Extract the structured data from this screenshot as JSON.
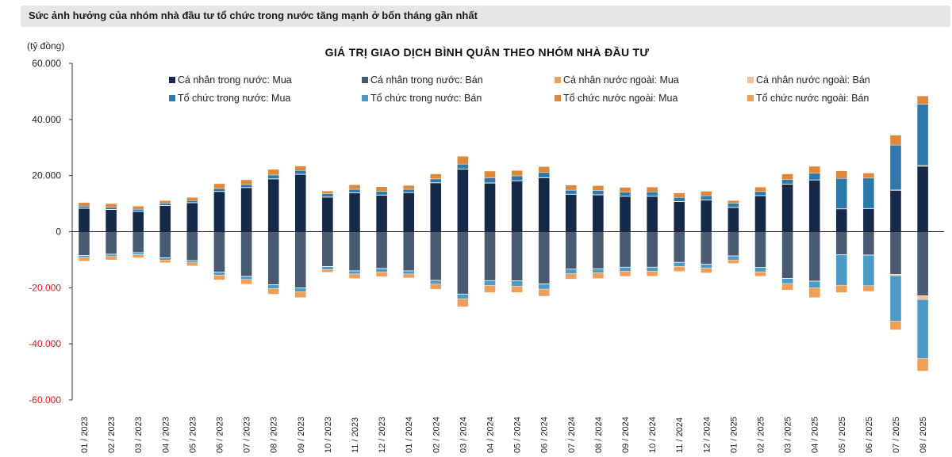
{
  "banner": {
    "title": "Sức ảnh hưởng của nhóm nhà đầu tư tổ chức trong nước tăng mạnh ở bốn tháng gần nhất"
  },
  "chart_data": {
    "type": "bar",
    "stacked": true,
    "title": "GIÁ TRỊ GIAO DỊCH BÌNH QUÂN THEO NHÓM NHÀ ĐẦU TƯ",
    "ylabel": "(tỷ đồng)",
    "xlabel": "",
    "ylim": [
      -60000,
      60000
    ],
    "yticks": [
      60000,
      40000,
      20000,
      0,
      -20000,
      -40000,
      -60000
    ],
    "ytick_labels": [
      "60.000",
      "40.000",
      "20.000",
      "0",
      "-20.000",
      "-40.000",
      "-60.000"
    ],
    "legend_position": "top-center",
    "categories": [
      "01 / 2023",
      "02 / 2023",
      "03 / 2023",
      "04 / 2023",
      "05 / 2023",
      "06 / 2023",
      "07 / 2023",
      "08 / 2023",
      "09 / 2023",
      "10 / 2023",
      "11 / 2023",
      "12 / 2023",
      "01 / 2024",
      "02 / 2024",
      "03 / 2024",
      "04 / 2024",
      "05 / 2024",
      "06 / 2024",
      "07 / 2024",
      "08 / 2024",
      "09 / 2024",
      "10 / 2024",
      "11 / 2024",
      "12 / 2024",
      "01 / 2025",
      "02 / 2025",
      "03 / 2025",
      "04 / 2025",
      "05 / 2025",
      "06 / 2025",
      "07 / 2025",
      "08 / 2025"
    ],
    "series": [
      {
        "name": "Cá nhân trong nước: Mua",
        "color": "#17294a",
        "values": [
          8300,
          7900,
          7200,
          9300,
          10300,
          14300,
          15700,
          18800,
          20400,
          12300,
          13800,
          13000,
          13900,
          17400,
          22300,
          17300,
          18100,
          19200,
          13300,
          13100,
          12600,
          12600,
          10700,
          11300,
          8600,
          12800,
          16900,
          18400,
          8100,
          8200,
          14700,
          23300
        ]
      },
      {
        "name": "Cá nhân trong nước: Bán",
        "color": "#4a5a70",
        "values": [
          -8400,
          -8000,
          -7400,
          -9300,
          -10300,
          -14400,
          -15900,
          -18900,
          -20000,
          -12400,
          -13900,
          -13100,
          -13900,
          -17300,
          -22200,
          -17400,
          -17500,
          -18600,
          -13300,
          -13200,
          -12600,
          -12600,
          -10900,
          -11500,
          -8600,
          -12700,
          -16600,
          -17600,
          -8200,
          -8300,
          -15200,
          -22800
        ]
      },
      {
        "name": "Cá nhân nước ngoài: Mua",
        "color": "#e8a055",
        "values": [
          100,
          100,
          100,
          100,
          100,
          100,
          100,
          100,
          100,
          100,
          100,
          100,
          100,
          100,
          100,
          100,
          100,
          100,
          100,
          100,
          100,
          100,
          100,
          100,
          100,
          100,
          100,
          100,
          100,
          100,
          200,
          300
        ]
      },
      {
        "name": "Cá nhân nước ngoài: Bán",
        "color": "#f3c298",
        "values": [
          -100,
          -100,
          -100,
          -100,
          -100,
          -100,
          -100,
          -100,
          -100,
          -100,
          -100,
          -100,
          -100,
          -100,
          -100,
          -100,
          -100,
          -100,
          -100,
          -100,
          -100,
          -100,
          -100,
          -100,
          -100,
          -100,
          -100,
          -100,
          -100,
          -100,
          -500,
          -1400
        ]
      },
      {
        "name": "Tổ chức trong nước: Mua",
        "color": "#2e79ab",
        "values": [
          700,
          700,
          700,
          700,
          700,
          1000,
          1000,
          1300,
          1300,
          1100,
          1200,
          1300,
          1100,
          1300,
          1700,
          1800,
          1700,
          1800,
          1400,
          1500,
          1400,
          1500,
          1400,
          1400,
          1400,
          1400,
          1600,
          2300,
          10800,
          10800,
          16000,
          21800
        ]
      },
      {
        "name": "Tổ chức trong nước: Bán",
        "color": "#4b9ac8",
        "values": [
          -700,
          -700,
          -700,
          -700,
          -700,
          -1000,
          -1000,
          -1300,
          -1300,
          -1000,
          -1100,
          -1200,
          -1100,
          -1300,
          -1600,
          -1700,
          -1800,
          -1800,
          -1500,
          -1400,
          -1400,
          -1400,
          -1400,
          -1400,
          -1400,
          -1500,
          -1800,
          -2300,
          -10800,
          -10900,
          -16200,
          -21000
        ]
      },
      {
        "name": "Tổ chức nước ngoài: Mua",
        "color": "#e0883a",
        "values": [
          1300,
          1300,
          1100,
          1000,
          1100,
          1700,
          1700,
          2000,
          1600,
          1000,
          1600,
          1600,
          1400,
          1800,
          2800,
          2400,
          1900,
          2100,
          1800,
          1700,
          1700,
          1700,
          1600,
          1600,
          1000,
          1600,
          2000,
          2500,
          2700,
          1800,
          3500,
          3000
        ]
      },
      {
        "name": "Tổ chức nước ngoài: Bán",
        "color": "#ef9f57",
        "values": [
          -1300,
          -1300,
          -1100,
          -1000,
          -1100,
          -1700,
          -1700,
          -2000,
          -2100,
          -1000,
          -1600,
          -1600,
          -1400,
          -1800,
          -2900,
          -2500,
          -2300,
          -2500,
          -2000,
          -2000,
          -1800,
          -1800,
          -1800,
          -1700,
          -1200,
          -1600,
          -2300,
          -3500,
          -2600,
          -2000,
          -3100,
          -4500
        ]
      }
    ]
  }
}
